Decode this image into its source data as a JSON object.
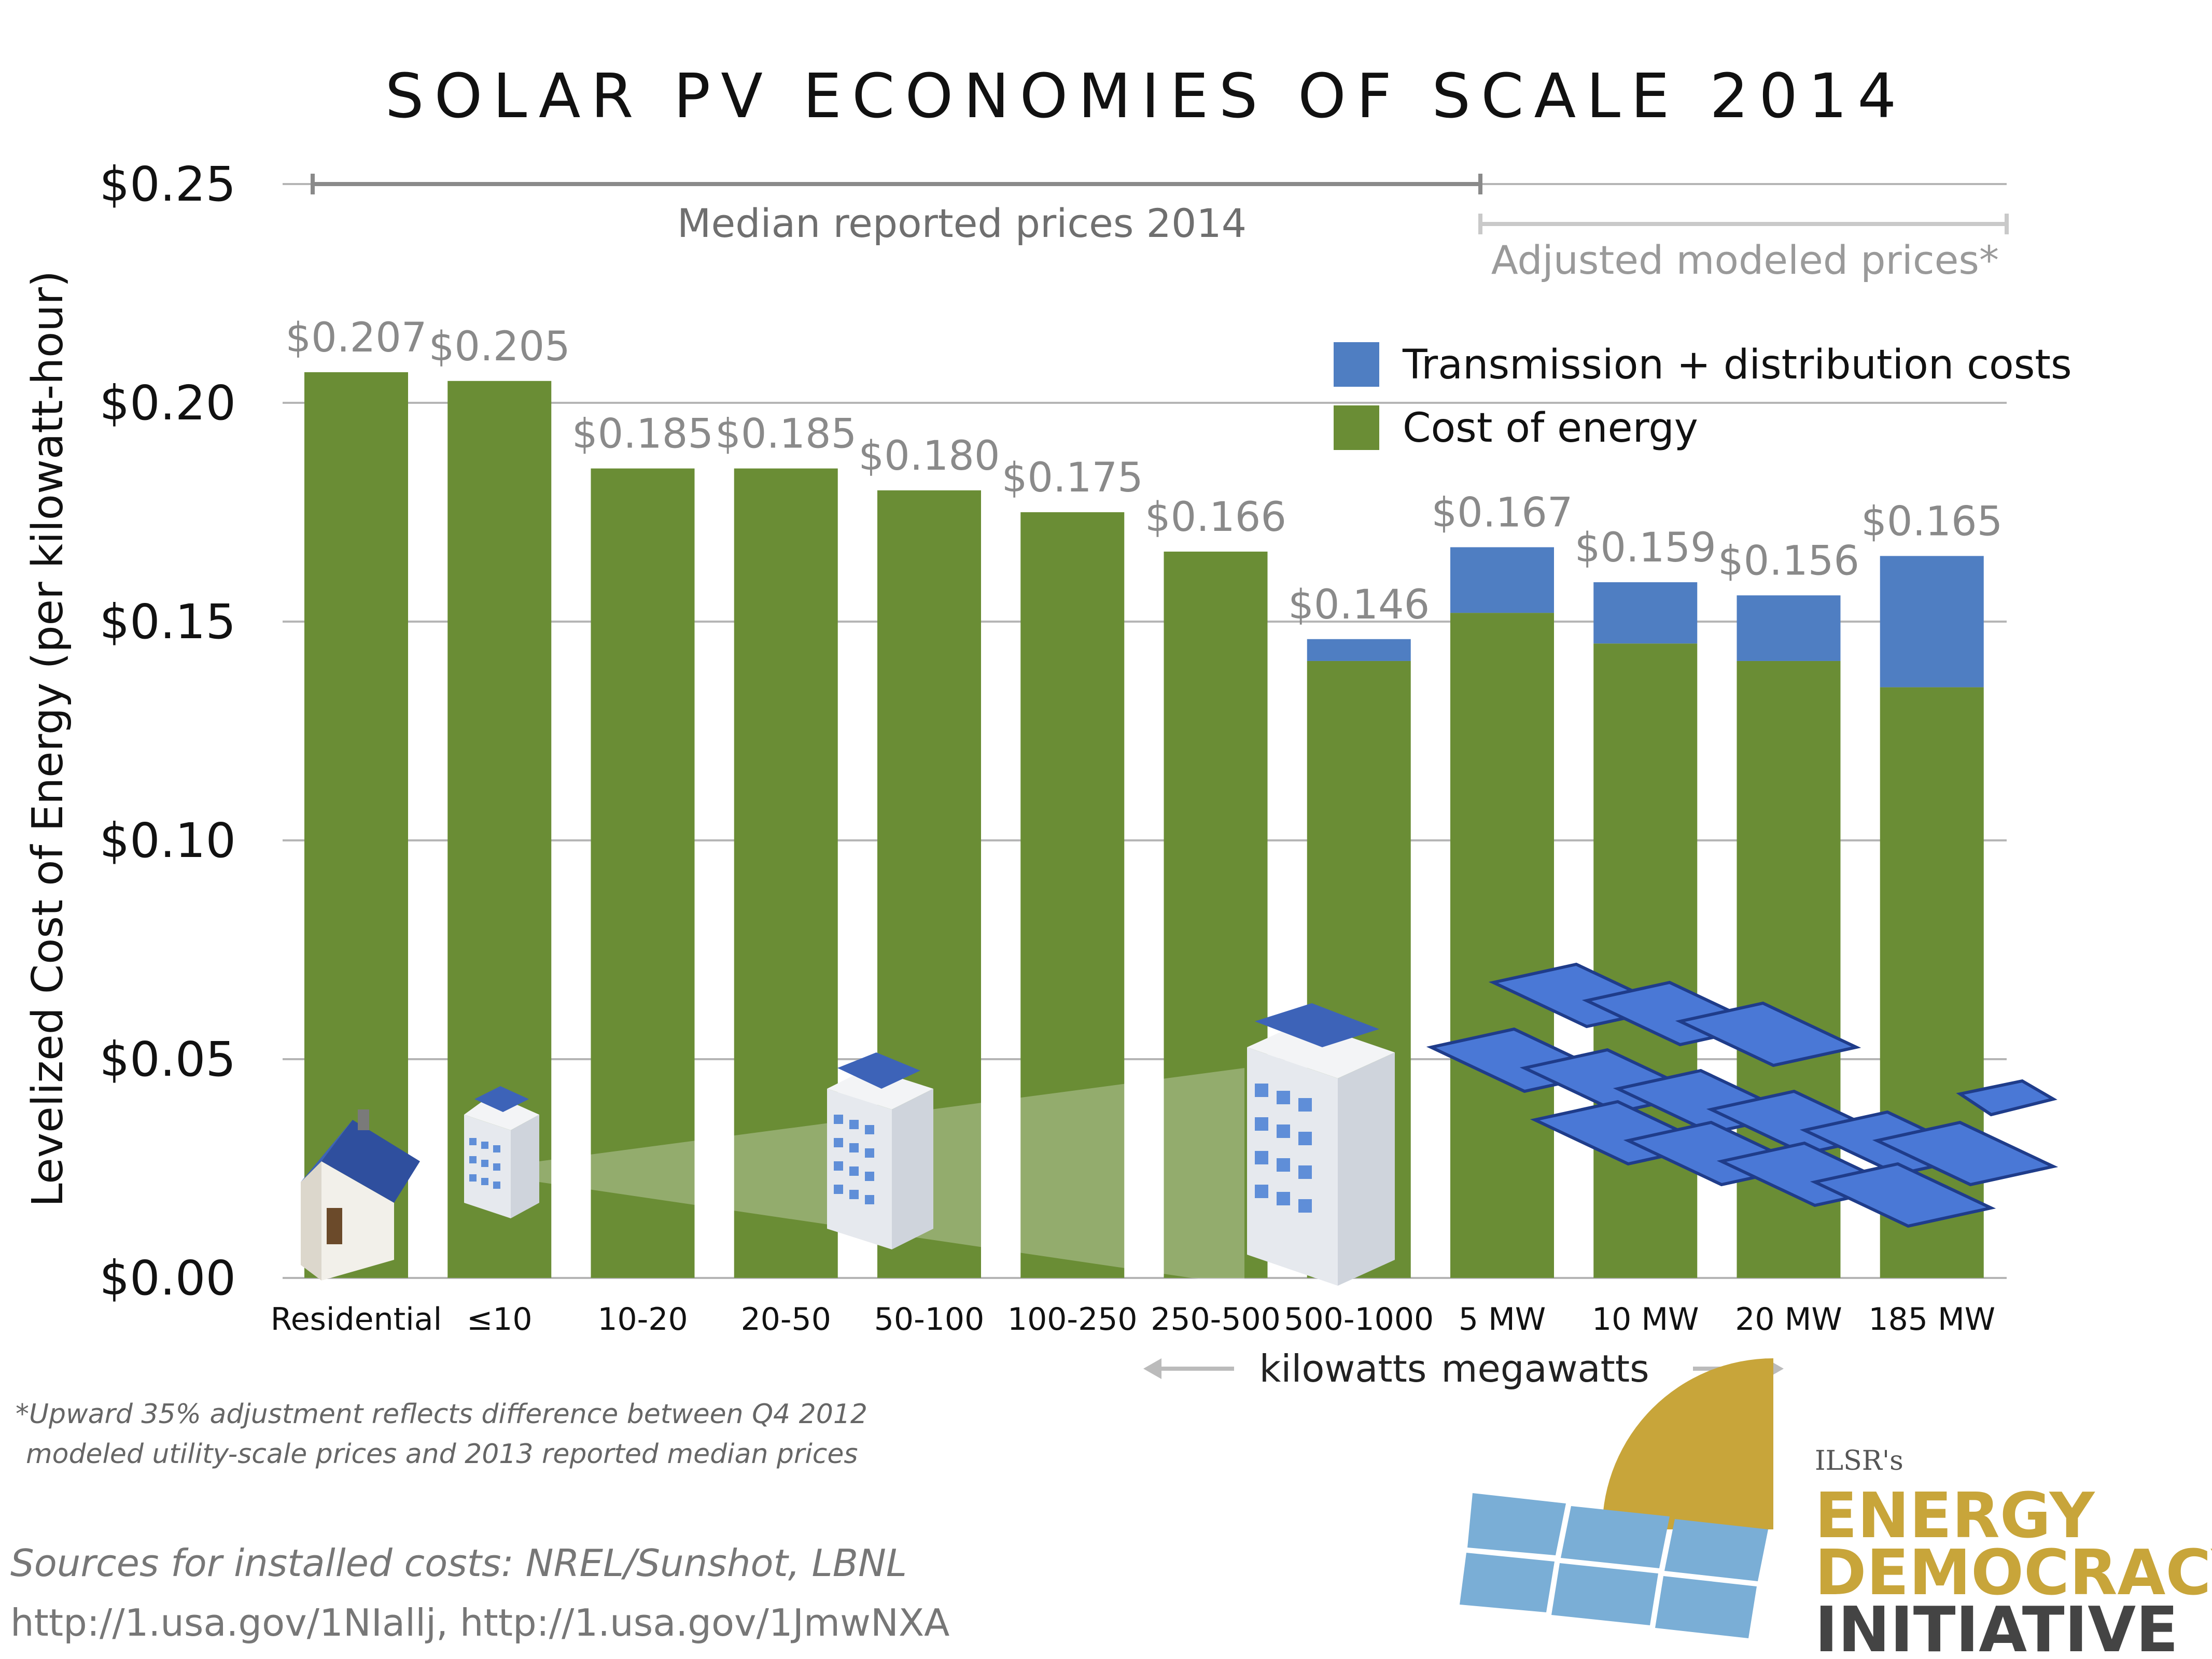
{
  "chart_data": {
    "type": "bar",
    "title": "SOLAR PV ECONOMIES OF SCALE 2014",
    "ylabel": "Levelized Cost of Energy (per kilowatt-hour)",
    "xlabel": "",
    "ylim": [
      0,
      0.25
    ],
    "yticks": [
      "$0.00",
      "$0.05",
      "$0.10",
      "$0.15",
      "$0.20",
      "$0.25"
    ],
    "ytick_values": [
      0,
      0.05,
      0.1,
      0.15,
      0.2,
      0.25
    ],
    "grid": true,
    "legend_position": "top-right",
    "categories": [
      "Residential",
      "≤10",
      "10-20",
      "20-50",
      "50-100",
      "100-250",
      "250-500",
      "500-1000",
      "5 MW",
      "10 MW",
      "20 MW",
      "185 MW"
    ],
    "series": [
      {
        "name": "Cost of energy",
        "color": "#6a8d35",
        "values": [
          0.207,
          0.205,
          0.185,
          0.185,
          0.18,
          0.175,
          0.166,
          0.141,
          0.152,
          0.145,
          0.141,
          0.135
        ]
      },
      {
        "name": "Transmission + distribution costs",
        "color": "#4f7ec2",
        "values": [
          0,
          0,
          0,
          0,
          0,
          0,
          0,
          0.005,
          0.015,
          0.014,
          0.015,
          0.03
        ]
      }
    ],
    "totals_labels": [
      "$0.207",
      "$0.205",
      "$0.185",
      "$0.185",
      "$0.180",
      "$0.175",
      "$0.166",
      "$0.146",
      "$0.167",
      "$0.159",
      "$0.156",
      "$0.165"
    ],
    "annotations": {
      "median": "Median reported prices 2014",
      "adjusted": "Adjusted modeled prices*",
      "kilowatts": "kilowatts",
      "megawatts": "megawatts"
    }
  },
  "footnote": {
    "line1": "*Upward 35% adjustment reflects difference between Q4 2012",
    "line2": "modeled utility-scale prices and 2013 reported median prices"
  },
  "sources": {
    "line1": "Sources for installed costs: NREL/Sunshot, LBNL",
    "line2": "http://1.usa.gov/1NIallj, http://1.usa.gov/1JmwNXA"
  },
  "logo": {
    "line0": "ILSR's",
    "line1": "ENERGY",
    "line2": "DEMOCRACY",
    "line3": "INITIATIVE",
    "gold": "#c8a53a",
    "dark": "#444444"
  },
  "colors": {
    "grid": "#b5b5b5",
    "bar_green": "#6a8d35",
    "bar_blue": "#4f7ec2",
    "bracket": "#8a8a8a"
  },
  "icons": [
    "house-icon",
    "small-building-icon",
    "medium-building-icon",
    "large-building-icon",
    "solar-farm-icon"
  ]
}
